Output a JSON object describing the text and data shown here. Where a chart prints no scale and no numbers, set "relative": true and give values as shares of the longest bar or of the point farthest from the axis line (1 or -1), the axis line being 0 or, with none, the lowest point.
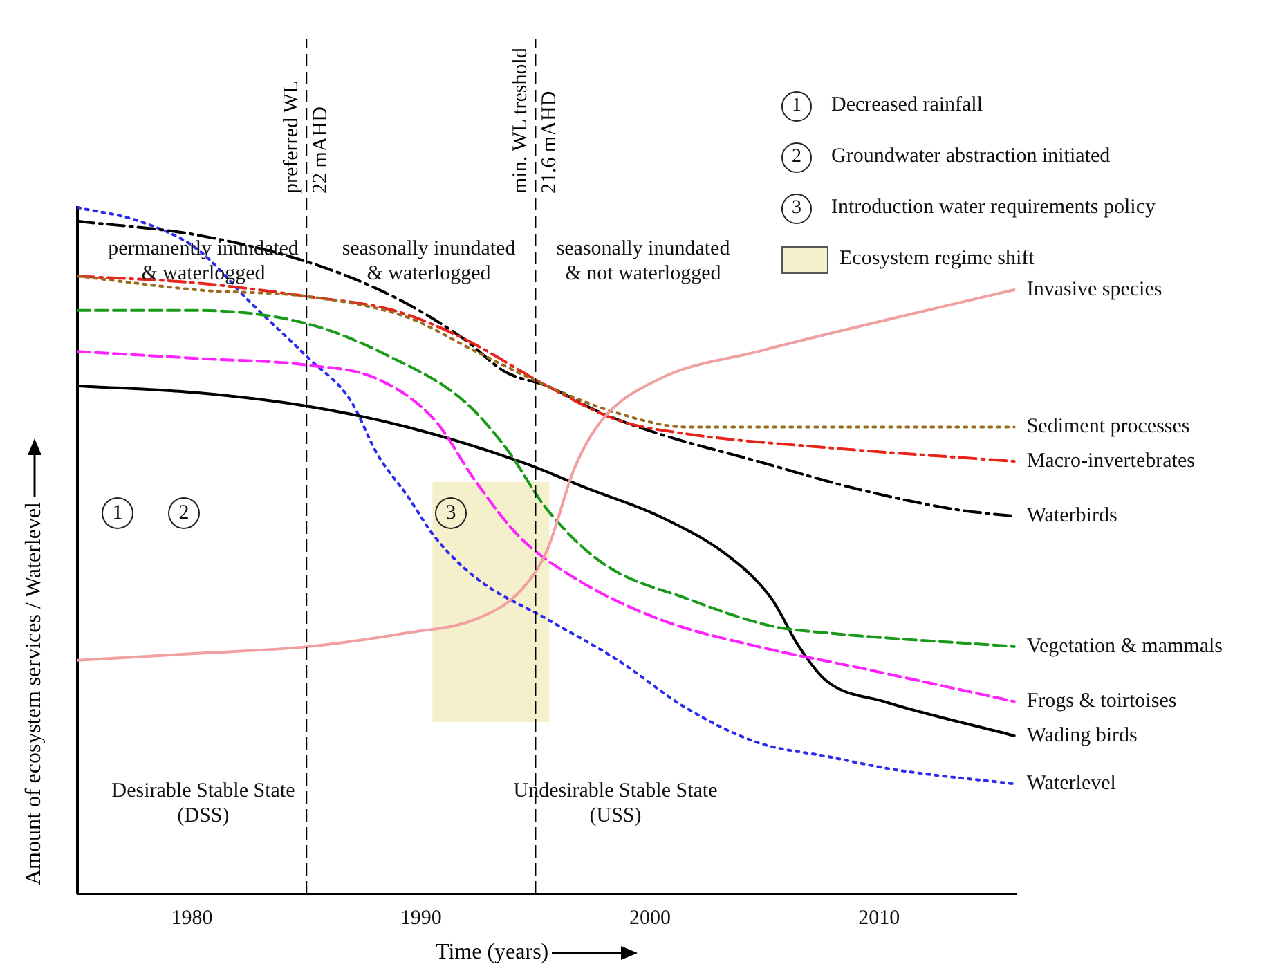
{
  "chart_data": {
    "type": "line",
    "relative": true,
    "xlabel": "Time (years)",
    "ylabel": "Amount of ecosystem services / Waterlevel",
    "xlim": [
      1975,
      2016
    ],
    "xticks": [
      1980,
      1990,
      2000,
      2010
    ],
    "grid": false,
    "legend": "top right",
    "marker": "none",
    "series": [
      {
        "name": "Invasive species",
        "color": "#f0a0a0",
        "line_style": "solid",
        "x": [
          1975,
          1980.2,
          1985.1,
          1989.4,
          1992.4,
          1994.3,
          1995.5,
          1996.7,
          1997.9,
          2000.4,
          2004.7,
          2010.8,
          2015.9
        ],
        "values": [
          0.34,
          0.35,
          0.36,
          0.38,
          0.4,
          0.44,
          0.5,
          0.62,
          0.69,
          0.75,
          0.79,
          0.84,
          0.88
        ]
      },
      {
        "name": "Sediment processes",
        "color": "#9a6a1e",
        "line_style": "dotted",
        "x": [
          1975,
          1980.2,
          1985.1,
          1989.4,
          1992.4,
          1995.5,
          1998.6,
          2001.6,
          2007.7,
          2015.9
        ],
        "values": [
          0.9,
          0.88,
          0.87,
          0.84,
          0.79,
          0.74,
          0.7,
          0.68,
          0.68,
          0.68
        ]
      },
      {
        "name": "Macro-invertebrates",
        "color": "#e8231a",
        "line_style": "dashdot",
        "x": [
          1975,
          1980.2,
          1985.1,
          1988.8,
          1991.8,
          1995.5,
          1998.6,
          2001.6,
          2007.7,
          2015.9
        ],
        "values": [
          0.9,
          0.89,
          0.87,
          0.85,
          0.81,
          0.74,
          0.69,
          0.67,
          0.65,
          0.63
        ]
      },
      {
        "name": "Waterbirds",
        "color": "#000000",
        "line_style": "dashdot",
        "x": [
          1975,
          1980.2,
          1985.1,
          1988.8,
          1991.8,
          1993.7,
          1995.5,
          1997.9,
          2000.4,
          2004.7,
          2009,
          2013.3,
          2015.9
        ],
        "values": [
          0.98,
          0.96,
          0.92,
          0.87,
          0.81,
          0.76,
          0.74,
          0.7,
          0.67,
          0.63,
          0.59,
          0.56,
          0.55
        ]
      },
      {
        "name": "Vegetation & mammals",
        "color": "#1a9a1a",
        "line_style": "dashed",
        "x": [
          1975,
          1980.2,
          1985.1,
          1988.8,
          1991.8,
          1993.7,
          1995.5,
          1998,
          2001.6,
          2005.3,
          2007.7,
          2015.9
        ],
        "values": [
          0.85,
          0.85,
          0.83,
          0.78,
          0.72,
          0.65,
          0.56,
          0.48,
          0.43,
          0.39,
          0.38,
          0.36
        ]
      },
      {
        "name": "Frogs & toirtoises",
        "color": "#ff22ff",
        "line_style": "dashed",
        "x": [
          1975,
          1980.2,
          1985.1,
          1988.1,
          1990.6,
          1992.4,
          1994.3,
          1996.7,
          2000.4,
          2004.7,
          2009,
          2015.9
        ],
        "values": [
          0.79,
          0.78,
          0.77,
          0.75,
          0.69,
          0.6,
          0.52,
          0.46,
          0.4,
          0.36,
          0.33,
          0.28
        ]
      },
      {
        "name": "Wading birds",
        "color": "#000000",
        "line_style": "solid",
        "x": [
          1975,
          1980.2,
          1985.1,
          1989.4,
          1994.3,
          1997.3,
          2000.4,
          2003.5,
          2005.3,
          2006.5,
          2007.7,
          2010.2,
          2015.9
        ],
        "values": [
          0.74,
          0.73,
          0.71,
          0.68,
          0.63,
          0.59,
          0.55,
          0.49,
          0.43,
          0.36,
          0.31,
          0.28,
          0.23
        ]
      },
      {
        "name": "Waterlevel",
        "color": "#2a2af0",
        "line_style": "dotted",
        "x": [
          1975,
          1977.7,
          1980.2,
          1982.6,
          1985.1,
          1986.9,
          1988.1,
          1989.4,
          1990.6,
          1992.4,
          1995.5,
          1998.6,
          2001.6,
          2004.7,
          2007.7,
          2010.8,
          2015.9
        ],
        "values": [
          1,
          0.98,
          0.94,
          0.86,
          0.78,
          0.72,
          0.64,
          0.58,
          0.52,
          0.46,
          0.4,
          0.34,
          0.27,
          0.22,
          0.2,
          0.18,
          0.16
        ]
      }
    ],
    "ref_lines": [
      {
        "axis": "x",
        "value": 1985,
        "label": "preferred WL\n22 mAHD",
        "color": "#000000",
        "line_style": "dashed"
      },
      {
        "axis": "x",
        "value": 1995,
        "label": "min. WL treshold\n21.6 mAHD",
        "color": "#000000",
        "line_style": "dashed"
      }
    ],
    "bands": [
      {
        "axis": "x",
        "from": 1990.5,
        "to": 1995.6,
        "label": "Ecosystem regime shift",
        "color": "#f5f0cc"
      }
    ],
    "annotations": [
      "permanently inundated\n& waterlogged",
      "seasonally inundated\n& waterlogged",
      "seasonally inundated\n& not waterlogged",
      "Desirable Stable State\n(DSS)",
      "Undesirable Stable State\n(USS)",
      "1",
      "2",
      "3",
      "Decreased rainfall",
      "Groundwater abstraction initiated",
      "Introduction water requirements policy"
    ]
  }
}
